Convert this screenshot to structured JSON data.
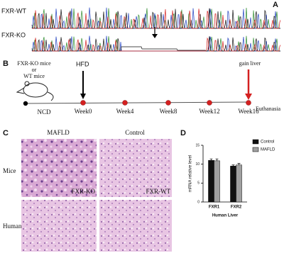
{
  "panels": {
    "a": {
      "label": "A",
      "rows": [
        "FXR-WT",
        "FXR-KO"
      ]
    },
    "b": {
      "label": "B",
      "mice": [
        "FXR-KO mice",
        "or",
        "WT mice"
      ],
      "start": "NCD",
      "diet": "HFD",
      "end": "gain liver",
      "endpoint": "Euthanasia",
      "weeks": [
        "Week0",
        "Week4",
        "Week8",
        "Week12",
        "Week16"
      ]
    },
    "c": {
      "label": "C",
      "columns": [
        "MAFLD",
        "Control"
      ],
      "rows": [
        "Mice",
        "Human"
      ],
      "tags": [
        "FXR-KO",
        "FXR-WT"
      ]
    },
    "d": {
      "label": "D"
    }
  },
  "chart_data": {
    "type": "bar",
    "ylabel": "mRNA relative level",
    "xlabel": "Human Liver",
    "categories": [
      "FXR1",
      "FXR2"
    ],
    "series": [
      {
        "name": "Control",
        "color": "#111111",
        "values": [
          11,
          9.5
        ],
        "errors": [
          0.4,
          0.3
        ]
      },
      {
        "name": "MAFLD",
        "color": "#a0a0a0",
        "values": [
          10.9,
          9.8
        ],
        "errors": [
          0.5,
          0.4
        ]
      }
    ],
    "ylim": [
      0,
      15
    ],
    "yticks": [
      0,
      5,
      10,
      15
    ],
    "legend": "top-right"
  }
}
